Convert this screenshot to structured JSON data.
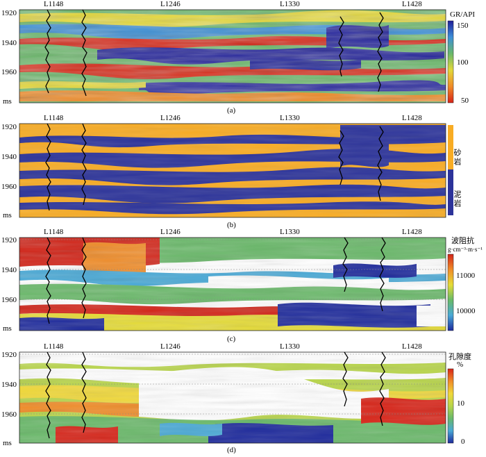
{
  "panels": [
    {
      "id": "a",
      "caption": "(a)",
      "wells": [
        "L1148",
        "L1246",
        "L1330",
        "L1428"
      ],
      "y_ticks": [
        "1920",
        "1940",
        "1960",
        "ms"
      ],
      "legend_title": "GR/API",
      "legend_unit": "",
      "legend_ticks": [
        "150",
        "100",
        "50"
      ],
      "colors": [
        "#1e1e9a",
        "#3d8fd8",
        "#69b86a",
        "#e2d83a",
        "#f08c28",
        "#d82418"
      ]
    },
    {
      "id": "b",
      "caption": "(b)",
      "wells": [
        "L1148",
        "L1246",
        "L1330",
        "L1428"
      ],
      "y_ticks": [
        "1920",
        "1940",
        "1960",
        "ms"
      ],
      "legend_title": "",
      "legend_unit": "",
      "legend_ticks": [],
      "facies": [
        {
          "label": "砂岩",
          "color": "#f8ac24"
        },
        {
          "label": "泥岩",
          "color": "#2c339a"
        }
      ]
    },
    {
      "id": "c",
      "caption": "(c)",
      "wells": [
        "L1148",
        "L1246",
        "L1330",
        "L1428"
      ],
      "y_ticks": [
        "1920",
        "1940",
        "1960",
        "ms"
      ],
      "legend_title": "波阻抗",
      "legend_unit": "g·cm⁻³·m·s⁻¹",
      "legend_ticks": [
        "11000",
        "10000"
      ],
      "colors": [
        "#1e2a9c",
        "#49a9d6",
        "#68ba68",
        "#e6dc36",
        "#f08c28",
        "#d22418"
      ]
    },
    {
      "id": "d",
      "caption": "(d)",
      "wells": [
        "L1148",
        "L1246",
        "L1330",
        "L1428"
      ],
      "y_ticks": [
        "1920",
        "1940",
        "1960",
        "ms"
      ],
      "legend_title": "孔隙度",
      "legend_unit": "%",
      "legend_ticks": [
        "10",
        "0"
      ],
      "colors": [
        "#1e2a9c",
        "#49a9d6",
        "#6ab96a",
        "#b8d54a",
        "#f0d83a",
        "#f08c28",
        "#d82418"
      ]
    }
  ]
}
